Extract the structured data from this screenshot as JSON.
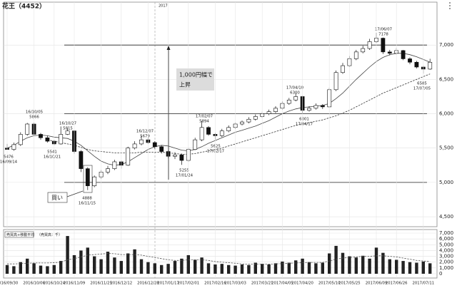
{
  "chart_data": [
    {
      "type": "candlestick",
      "title": "花王（4452）",
      "year_label": "2017",
      "open": [
        5500,
        5480,
        5550,
        5700,
        5850,
        5700,
        5650,
        5600,
        5560,
        5700,
        5750,
        5450,
        5200,
        4950,
        5080,
        5150,
        5200,
        5300,
        5250,
        5500,
        5560,
        5620,
        5580,
        5520,
        5450,
        5380,
        5400,
        5320,
        5480,
        5620,
        5800,
        5700,
        5680,
        5750,
        5800,
        5850,
        5880,
        5920,
        5960,
        6000,
        6030,
        6080,
        6150,
        6200,
        6250,
        6050,
        6080,
        6120,
        6100,
        6350,
        6600,
        6700,
        6800,
        6900,
        6950,
        7050,
        7100,
        6900,
        6880,
        6920,
        6800,
        6750,
        6680,
        6650
      ],
      "high": [
        5560,
        5580,
        5730,
        5866,
        5870,
        5720,
        5680,
        5620,
        5815,
        5790,
        5760,
        5470,
        5220,
        5100,
        5180,
        5240,
        5330,
        5320,
        5520,
        5600,
        5679,
        5650,
        5600,
        5540,
        5470,
        5440,
        5420,
        5500,
        5650,
        5894,
        5820,
        5720,
        5780,
        5830,
        5870,
        5900,
        5950,
        5990,
        6030,
        6060,
        6110,
        6180,
        6230,
        6300,
        6260,
        6110,
        6150,
        6140,
        6380,
        6630,
        6740,
        6840,
        6930,
        6990,
        7090,
        7178,
        7110,
        6930,
        6960,
        6930,
        6820,
        6770,
        6700,
        6800
      ],
      "low": [
        5476,
        5460,
        5530,
        5680,
        5680,
        5620,
        5580,
        5541,
        5550,
        5690,
        5420,
        5150,
        4888,
        4930,
        5050,
        5120,
        5180,
        5200,
        5240,
        5480,
        5540,
        5560,
        5490,
        5420,
        5350,
        5340,
        5255,
        5300,
        5470,
        5600,
        5680,
        5625,
        5660,
        5730,
        5780,
        5830,
        5860,
        5900,
        5940,
        5980,
        6010,
        6060,
        6130,
        6180,
        6001,
        6030,
        6060,
        6070,
        6090,
        6330,
        6580,
        6680,
        6780,
        6880,
        6930,
        7030,
        6870,
        6850,
        6860,
        6780,
        6720,
        6660,
        6585,
        6640
      ],
      "close": [
        5480,
        5550,
        5700,
        5850,
        5700,
        5650,
        5600,
        5560,
        5700,
        5750,
        5450,
        5200,
        4950,
        5080,
        5150,
        5200,
        5300,
        5250,
        5500,
        5560,
        5620,
        5580,
        5520,
        5450,
        5380,
        5400,
        5320,
        5480,
        5620,
        5800,
        5700,
        5680,
        5750,
        5800,
        5850,
        5880,
        5920,
        5960,
        6000,
        6030,
        6080,
        6150,
        6200,
        6250,
        6050,
        6080,
        6120,
        6100,
        6350,
        6600,
        6700,
        6800,
        6900,
        6950,
        7050,
        7100,
        6900,
        6880,
        6920,
        6800,
        6750,
        6680,
        6650,
        6750
      ],
      "moving_averages": [
        {
          "style": "solid",
          "color": "#444444",
          "values": [
            5500,
            5540,
            5600,
            5650,
            5680,
            5690,
            5680,
            5660,
            5650,
            5640,
            5600,
            5540,
            5460,
            5380,
            5310,
            5270,
            5250,
            5260,
            5300,
            5360,
            5420,
            5480,
            5520,
            5540,
            5530,
            5500,
            5470,
            5460,
            5480,
            5520,
            5570,
            5610,
            5650,
            5690,
            5730,
            5760,
            5790,
            5820,
            5860,
            5900,
            5950,
            6000,
            6040,
            6070,
            6090,
            6100,
            6110,
            6120,
            6150,
            6220,
            6300,
            6400,
            6500,
            6590,
            6680,
            6760,
            6820,
            6860,
            6880,
            6880,
            6860,
            6830,
            6790,
            6750
          ]
        },
        {
          "style": "dashed",
          "color": "#333333",
          "values": [
            null,
            null,
            null,
            null,
            null,
            null,
            5620,
            5600,
            5580,
            5560,
            5540,
            5510,
            5480,
            5460,
            5450,
            5440,
            5430,
            5430,
            5430,
            5430,
            5440,
            5440,
            5440,
            5440,
            5430,
            5420,
            5410,
            5410,
            5420,
            5440,
            5460,
            5480,
            5500,
            5530,
            5560,
            5590,
            5620,
            5650,
            5680,
            5710,
            5740,
            5770,
            5800,
            5830,
            5850,
            5870,
            5890,
            5910,
            5940,
            5970,
            6010,
            6050,
            6100,
            6150,
            6200,
            6250,
            6300,
            6340,
            6380,
            6420,
            6460,
            6500,
            6540,
            6580
          ]
        }
      ],
      "ylim": [
        4355,
        7625
      ],
      "yticks": [
        {
          "value": 7000,
          "label": "7,000"
        },
        {
          "value": 6500,
          "label": "6,500"
        },
        {
          "value": 6000,
          "label": "6,000"
        },
        {
          "value": 5500,
          "label": "5,500"
        },
        {
          "value": 5000,
          "label": "5,000"
        },
        {
          "value": 4500,
          "label": "4,500"
        }
      ],
      "grid": true,
      "annotations": [
        [
          "5476",
          "16/09/14"
        ],
        [
          "16/10/05",
          "5866"
        ],
        [
          "5541",
          "16/10/21"
        ],
        [
          "16/10/27",
          "5815"
        ],
        [
          "4888",
          "16/11/15"
        ],
        [
          "16/12/07",
          "5679"
        ],
        [
          "5255",
          "17/01/24"
        ],
        [
          "17/02/07",
          "5894"
        ],
        [
          "5625",
          "17/02/17"
        ],
        [
          "17/04/10",
          "6300"
        ],
        [
          "6001",
          "17/04/17"
        ],
        [
          "17/06/07",
          "7178"
        ],
        [
          "6585",
          "17/07/05"
        ]
      ],
      "callout": [
        "1,000円幅で",
        "上昇"
      ],
      "buy_label": "買い"
    },
    {
      "type": "bar",
      "title": "売買高+移動平均",
      "unit_label": "（売買高：千）",
      "color": "#222222",
      "categories": [
        "2016/09/30",
        null,
        null,
        null,
        "2016/10/06",
        null,
        null,
        "2016/10/24",
        null,
        null,
        "2016/11/09",
        null,
        null,
        null,
        "2016/11/25",
        null,
        null,
        "2016/12/12",
        null,
        null,
        null,
        "2016/12/28",
        null,
        null,
        "2017/01/17",
        null,
        null,
        "2017/02/01",
        null,
        null,
        null,
        "2017/02/16",
        null,
        null,
        "2017/03/03",
        null,
        null,
        null,
        "2017/03/21",
        null,
        null,
        "2017/04/05",
        null,
        null,
        "2017/04/20",
        null,
        null,
        null,
        "2017/05/10",
        null,
        null,
        "2017/05/25",
        null,
        null,
        null,
        "2017/06/09",
        null,
        null,
        "2017/06/26",
        null,
        null,
        null,
        "2017/07/11",
        null
      ],
      "values": [
        1500,
        1300,
        2000,
        2600,
        1800,
        1400,
        1300,
        1500,
        2200,
        6500,
        3200,
        4000,
        4500,
        3000,
        2500,
        3800,
        2800,
        2200,
        3500,
        4200,
        2500,
        2000,
        1800,
        1500,
        1700,
        2200,
        2600,
        3200,
        2400,
        2800,
        1800,
        1600,
        1700,
        1500,
        1400,
        1600,
        1500,
        1900,
        1700,
        1600,
        1800,
        2100,
        1900,
        2300,
        2600,
        2000,
        1800,
        1900,
        3500,
        4800,
        3600,
        3000,
        2800,
        3100,
        2600,
        4500,
        3600,
        2500,
        2400,
        2200,
        2000,
        1900,
        2100,
        1800
      ],
      "moving_average": {
        "style": "dashed",
        "color": "#555555",
        "values": [
          1700,
          1700,
          1750,
          1800,
          1850,
          1850,
          1850,
          1900,
          2000,
          2400,
          2600,
          2900,
          3200,
          3300,
          3400,
          3500,
          3450,
          3300,
          3300,
          3300,
          3200,
          3000,
          2800,
          2600,
          2400,
          2300,
          2300,
          2400,
          2400,
          2400,
          2300,
          2100,
          2000,
          1900,
          1800,
          1700,
          1650,
          1650,
          1650,
          1650,
          1700,
          1750,
          1800,
          1850,
          1900,
          1950,
          1950,
          1950,
          2200,
          2500,
          2700,
          2800,
          2900,
          3000,
          3000,
          3100,
          3100,
          3000,
          2900,
          2700,
          2500,
          2300,
          2200,
          2100
        ]
      },
      "ylim": [
        0,
        7000
      ],
      "yticks": [
        {
          "value": 7000,
          "label": "7,000"
        },
        {
          "value": 6000,
          "label": "6,000"
        },
        {
          "value": 5000,
          "label": "5,000"
        },
        {
          "value": 4000,
          "label": "4,000"
        },
        {
          "value": 3000,
          "label": "3,000"
        },
        {
          "value": 2000,
          "label": "2,000"
        },
        {
          "value": 1000,
          "label": "1,000"
        },
        0
      ],
      "grid": true
    }
  ]
}
